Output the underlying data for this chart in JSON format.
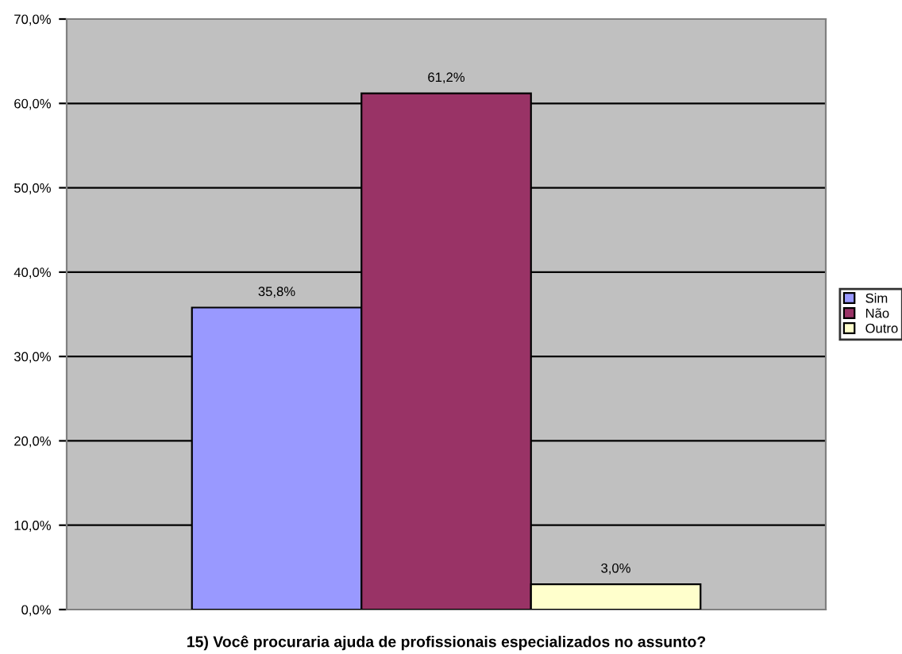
{
  "chart_data": {
    "type": "bar",
    "title": "15) Você procuraria ajuda de profissionais especializados no assunto?",
    "categories": [
      null
    ],
    "series": [
      {
        "name": "Sim",
        "color": "#9999ff",
        "values": [
          35.8
        ],
        "value_labels": [
          "35,8%"
        ]
      },
      {
        "name": "Não",
        "color": "#993366",
        "values": [
          61.2
        ],
        "value_labels": [
          "61,2%"
        ]
      },
      {
        "name": "Outro",
        "color": "#ffffcc",
        "values": [
          3.0
        ],
        "value_labels": [
          "3,0%"
        ]
      }
    ],
    "ylim": [
      0,
      70
    ],
    "yticks": [
      {
        "value": 0,
        "label": "0,0%"
      },
      {
        "value": 10,
        "label": "10,0%"
      },
      {
        "value": 20,
        "label": "20,0%"
      },
      {
        "value": 30,
        "label": "30,0%"
      },
      {
        "value": 40,
        "label": "40,0%"
      },
      {
        "value": 50,
        "label": "50,0%"
      },
      {
        "value": 60,
        "label": "60,0%"
      },
      {
        "value": 70,
        "label": "70,0%"
      }
    ],
    "grid": "y",
    "legend": "right"
  }
}
